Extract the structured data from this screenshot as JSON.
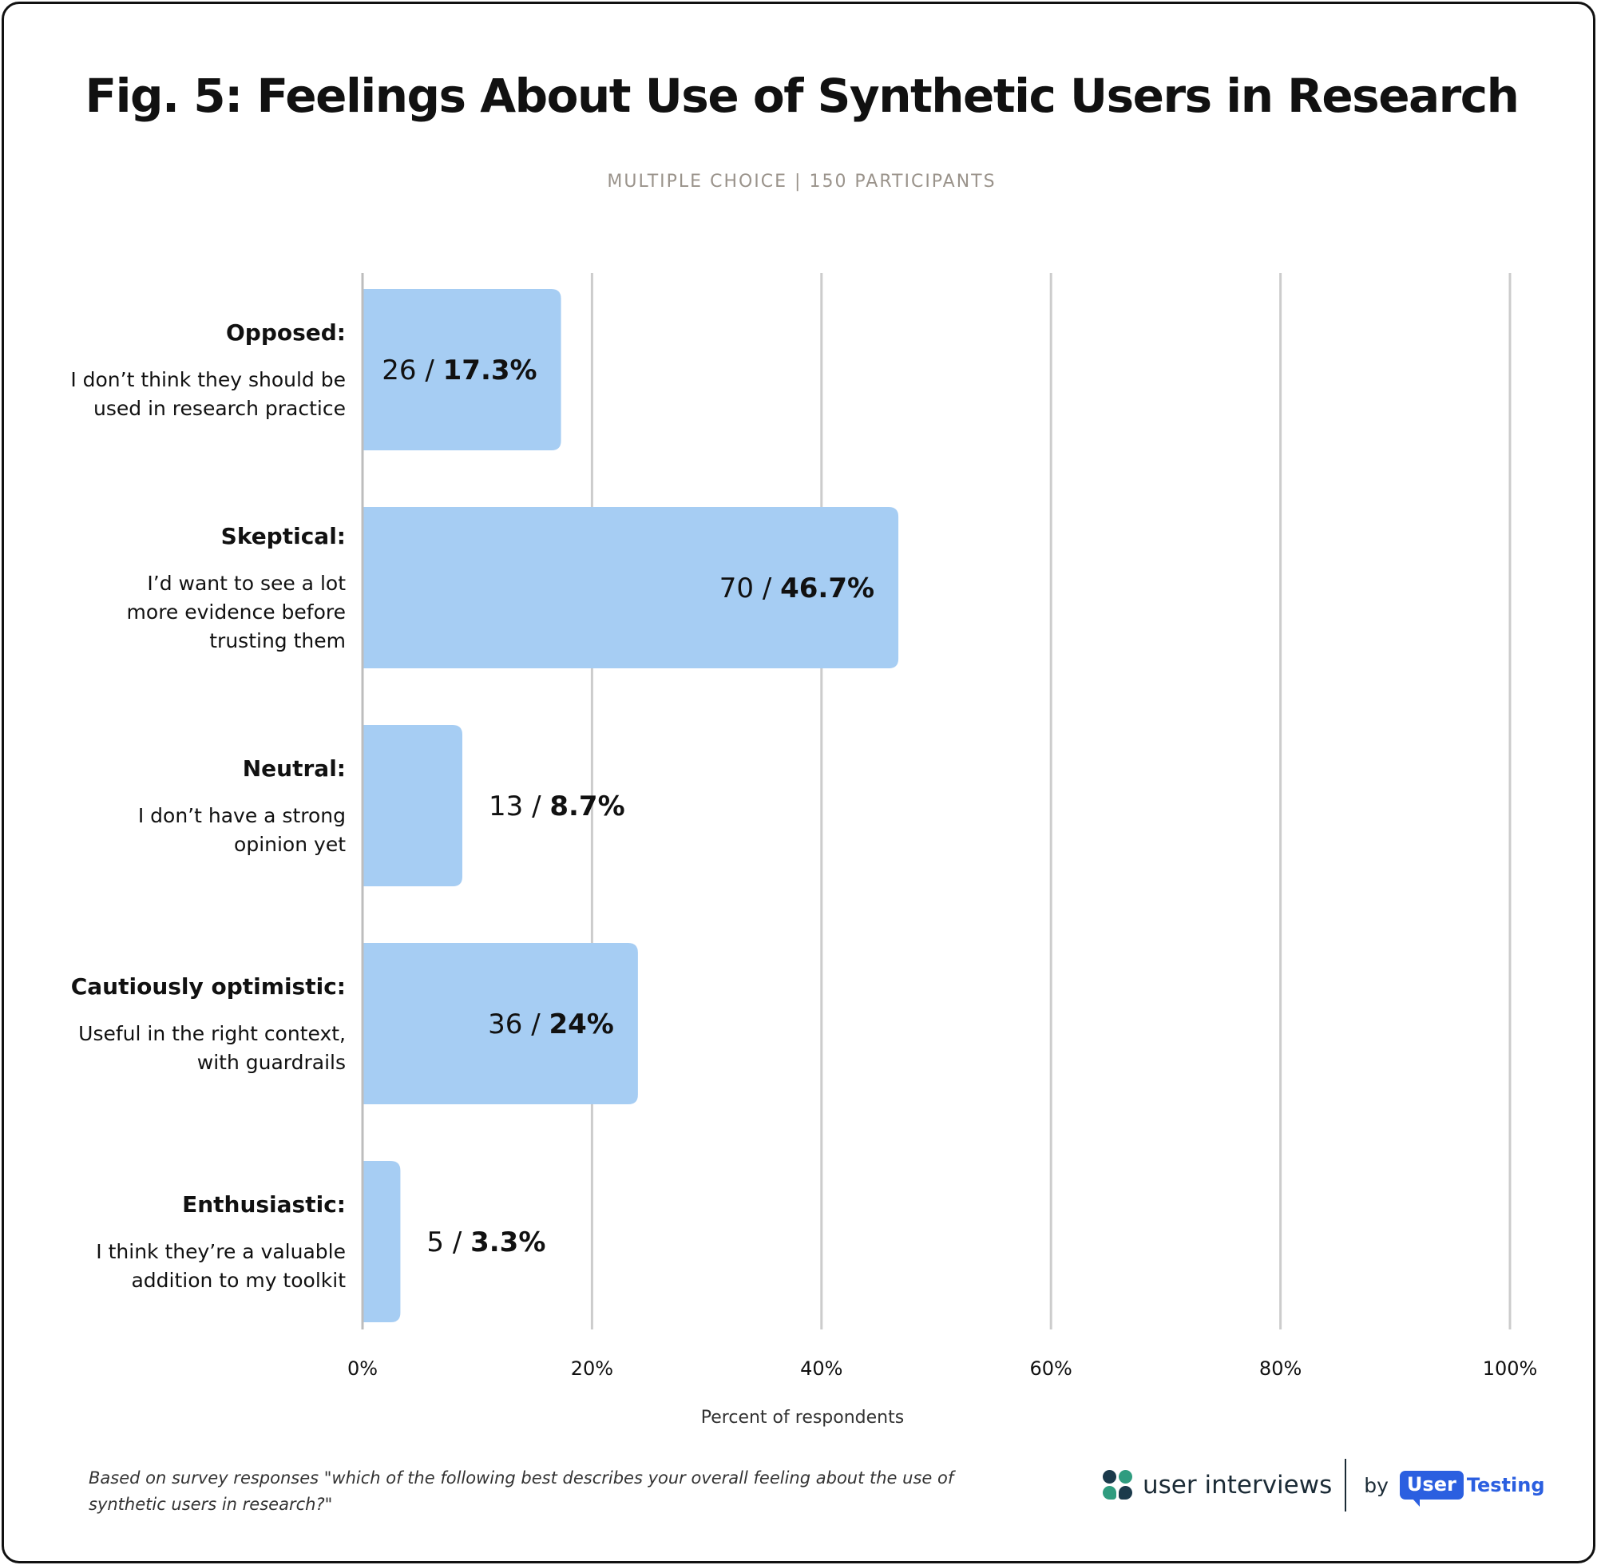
{
  "header": {
    "title_prefix": "Fig. 5:",
    "title_rest": " Feelings About Use of Synthetic Users in Research",
    "subtitle": "MULTIPLE CHOICE | 150 PARTICIPANTS"
  },
  "chart_data": {
    "type": "bar",
    "orientation": "horizontal",
    "title": "Fig. 5: Feelings About Use of Synthetic Users in Research",
    "subtitle": "MULTIPLE CHOICE | 150 PARTICIPANTS",
    "xlabel": "Percent of respondents",
    "ylabel": "",
    "xlim": [
      0,
      100
    ],
    "x_ticks": [
      "0%",
      "20%",
      "40%",
      "60%",
      "80%",
      "100%"
    ],
    "grid": true,
    "bar_color": "#a6cdf3",
    "categories": [
      {
        "label": "Opposed:",
        "description": [
          "I don’t think they should be",
          "used in research practice"
        ],
        "count": 26,
        "percent": 17.3,
        "percent_label": "17.3%"
      },
      {
        "label": "Skeptical:",
        "description": [
          "I’d want to see a lot",
          "more evidence before",
          "trusting them"
        ],
        "count": 70,
        "percent": 46.7,
        "percent_label": "46.7%"
      },
      {
        "label": "Neutral:",
        "description": [
          "I don’t have a strong",
          "opinion yet"
        ],
        "count": 13,
        "percent": 8.7,
        "percent_label": "8.7%"
      },
      {
        "label": "Cautiously optimistic:",
        "description": [
          "Useful in the right context,",
          "with guardrails"
        ],
        "count": 36,
        "percent": 24,
        "percent_label": "24%"
      },
      {
        "label": "Enthusiastic:",
        "description": [
          "I think they’re a valuable",
          "addition to my toolkit"
        ],
        "count": 5,
        "percent": 3.3,
        "percent_label": "3.3%"
      }
    ]
  },
  "footer": {
    "note": "Based on survey responses \"which of the following best describes your overall feeling about the use of synthetic users in research?\"",
    "brand_name": "user interviews",
    "by": "by",
    "partner_user": "User",
    "partner_testing": "Testing"
  },
  "colors": {
    "bar": "#a6cdf3",
    "grid": "#cccccc",
    "text": "#111111",
    "subtitle": "#9a938b",
    "partner_blue": "#2b5fe0",
    "brand_dark": "#1b3a4b",
    "brand_green": "#2f9c7f"
  }
}
